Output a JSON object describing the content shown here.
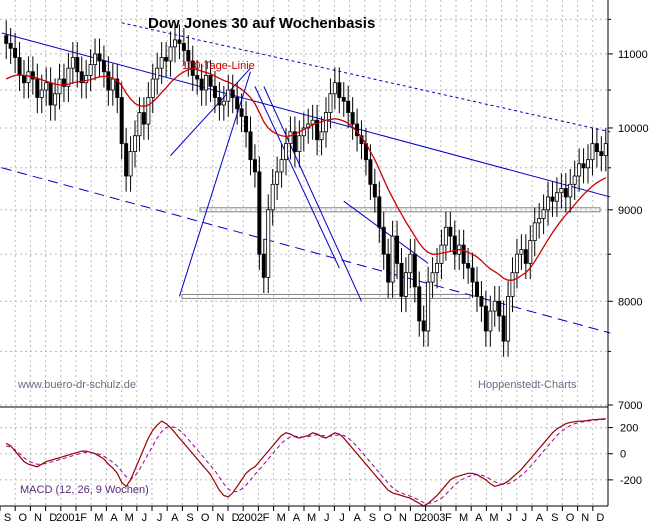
{
  "chart_data": [
    {
      "type": "candlestick",
      "title": "Dow Jones 30 auf Wochenbasis",
      "ylim": [
        7000,
        11700
      ],
      "y_scale": "log",
      "y_ticks": [
        "7000",
        "8000",
        "9000",
        "10000",
        "11000"
      ],
      "x_ticks": [
        "S",
        "O",
        "N",
        "D",
        "2001",
        "F",
        "M",
        "A",
        "M",
        "J",
        "J",
        "A",
        "S",
        "O",
        "N",
        "D",
        "2002",
        "F",
        "M",
        "A",
        "M",
        "J",
        "J",
        "A",
        "S",
        "O",
        "N",
        "D",
        "2003",
        "F",
        "M",
        "A",
        "M",
        "J",
        "J",
        "A",
        "S",
        "O",
        "N",
        "D"
      ],
      "x_start": "2000-09",
      "moving_average_label": "100-Tage-Linie",
      "moving_average_color": "#cc0000",
      "candle_color": "#000000",
      "trendline_color": "#0000cc",
      "support_line_color": "#808080",
      "horizontal_levels": [
        8050,
        9000
      ],
      "close": [
        11150,
        11080,
        10950,
        10700,
        10600,
        10750,
        10650,
        10400,
        10500,
        10600,
        10300,
        10450,
        10650,
        10550,
        10800,
        10950,
        10750,
        10600,
        10700,
        10850,
        11000,
        10900,
        10750,
        10500,
        10650,
        10400,
        9800,
        9400,
        9700,
        9900,
        10200,
        10050,
        10400,
        10650,
        10800,
        10950,
        10900,
        11100,
        11200,
        11150,
        11050,
        10900,
        10700,
        10650,
        10500,
        10700,
        10550,
        10400,
        10300,
        10350,
        10500,
        10400,
        10250,
        10150,
        9950,
        9600,
        9450,
        8500,
        8250,
        9000,
        9300,
        9450,
        9600,
        9800,
        9950,
        9700,
        9900,
        10000,
        10050,
        10100,
        9850,
        9950,
        10200,
        10450,
        10600,
        10400,
        10350,
        10200,
        10050,
        9900,
        9800,
        9600,
        9300,
        9150,
        8800,
        8500,
        8200,
        8700,
        8400,
        8050,
        8300,
        8500,
        8150,
        7800,
        7700,
        8200,
        8300,
        8400,
        8600,
        8800,
        8700,
        8500,
        8600,
        8400,
        8350,
        8200,
        8050,
        7950,
        7700,
        7900,
        8000,
        7850,
        7600,
        8050,
        8300,
        8500,
        8550,
        8400,
        8650,
        8850,
        8900,
        9000,
        9150,
        9100,
        9200,
        9250,
        9150,
        9300,
        9400,
        9550,
        9500,
        9600,
        9800,
        9700,
        9650,
        9800
      ],
      "moving_average": [
        10650,
        10680,
        10700,
        10710,
        10700,
        10690,
        10680,
        10660,
        10640,
        10620,
        10600,
        10580,
        10570,
        10570,
        10580,
        10600,
        10610,
        10620,
        10630,
        10640,
        10660,
        10680,
        10690,
        10680,
        10660,
        10630,
        10560,
        10460,
        10380,
        10320,
        10290,
        10280,
        10300,
        10340,
        10400,
        10470,
        10530,
        10600,
        10660,
        10710,
        10750,
        10780,
        10790,
        10780,
        10760,
        10740,
        10720,
        10690,
        10660,
        10630,
        10610,
        10580,
        10550,
        10510,
        10460,
        10400,
        10320,
        10200,
        10080,
        10000,
        9950,
        9920,
        9900,
        9890,
        9900,
        9920,
        9950,
        9980,
        10010,
        10040,
        10060,
        10080,
        10100,
        10110,
        10120,
        10110,
        10090,
        10060,
        10010,
        9950,
        9880,
        9800,
        9700,
        9600,
        9480,
        9360,
        9240,
        9140,
        9040,
        8950,
        8860,
        8780,
        8700,
        8620,
        8560,
        8520,
        8500,
        8500,
        8510,
        8520,
        8530,
        8540,
        8550,
        8540,
        8520,
        8500,
        8470,
        8430,
        8380,
        8340,
        8310,
        8280,
        8240,
        8220,
        8220,
        8240,
        8270,
        8300,
        8350,
        8420,
        8500,
        8580,
        8660,
        8740,
        8810,
        8880,
        8940,
        9000,
        9060,
        9120,
        9180,
        9230,
        9280,
        9320,
        9350,
        9380
      ],
      "watermark_left": "www.buero-dr-schulz.de",
      "watermark_right": "Hoppenstedt-Charts"
    },
    {
      "type": "line",
      "label": "MACD (12, 26, 9 Wochen)",
      "ylim": [
        -400,
        350
      ],
      "y_ticks": [
        "200",
        "0",
        "-200"
      ],
      "macd_color": "#990000",
      "signal_color": "#990099",
      "macd": [
        80,
        60,
        20,
        -20,
        -60,
        -80,
        -90,
        -100,
        -80,
        -60,
        -50,
        -40,
        -30,
        -20,
        -10,
        0,
        10,
        20,
        20,
        10,
        0,
        -20,
        -40,
        -80,
        -110,
        -150,
        -220,
        -250,
        -200,
        -120,
        -40,
        40,
        120,
        180,
        220,
        250,
        230,
        200,
        160,
        120,
        80,
        40,
        0,
        -40,
        -80,
        -120,
        -160,
        -220,
        -280,
        -320,
        -330,
        -300,
        -250,
        -200,
        -150,
        -120,
        -100,
        -60,
        -20,
        20,
        60,
        100,
        140,
        160,
        150,
        130,
        120,
        130,
        140,
        160,
        150,
        130,
        120,
        140,
        160,
        150,
        120,
        80,
        40,
        0,
        -40,
        -80,
        -120,
        -160,
        -200,
        -240,
        -280,
        -300,
        -310,
        -320,
        -330,
        -340,
        -360,
        -380,
        -400,
        -380,
        -350,
        -320,
        -280,
        -240,
        -200,
        -180,
        -170,
        -160,
        -150,
        -150,
        -160,
        -180,
        -200,
        -230,
        -250,
        -240,
        -230,
        -210,
        -180,
        -150,
        -120,
        -80,
        -40,
        0,
        40,
        80,
        120,
        160,
        190,
        210,
        230,
        240,
        245,
        250,
        250,
        255,
        260,
        262,
        265,
        268
      ],
      "signal": [
        60,
        50,
        30,
        0,
        -30,
        -55,
        -70,
        -80,
        -80,
        -75,
        -65,
        -55,
        -45,
        -35,
        -25,
        -15,
        -5,
        5,
        10,
        10,
        5,
        -5,
        -20,
        -40,
        -65,
        -95,
        -135,
        -175,
        -195,
        -170,
        -120,
        -60,
        0,
        60,
        120,
        170,
        200,
        210,
        200,
        180,
        150,
        110,
        70,
        30,
        -10,
        -50,
        -90,
        -130,
        -180,
        -230,
        -270,
        -290,
        -290,
        -270,
        -240,
        -200,
        -160,
        -120,
        -80,
        -40,
        0,
        40,
        80,
        110,
        130,
        135,
        130,
        128,
        130,
        140,
        145,
        140,
        135,
        135,
        140,
        145,
        140,
        120,
        90,
        55,
        15,
        -25,
        -65,
        -105,
        -145,
        -185,
        -225,
        -260,
        -285,
        -300,
        -315,
        -325,
        -340,
        -355,
        -375,
        -380,
        -375,
        -360,
        -340,
        -310,
        -275,
        -240,
        -210,
        -190,
        -175,
        -165,
        -160,
        -165,
        -175,
        -195,
        -215,
        -230,
        -235,
        -230,
        -215,
        -190,
        -165,
        -135,
        -100,
        -60,
        -20,
        20,
        60,
        100,
        140,
        170,
        195,
        215,
        230,
        240,
        245,
        250,
        255,
        258,
        261,
        264
      ]
    }
  ]
}
